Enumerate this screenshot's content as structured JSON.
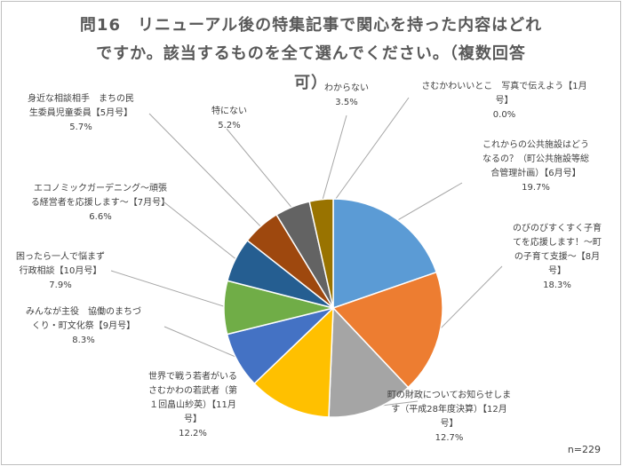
{
  "chart_data": {
    "type": "pie",
    "title_lines": [
      "問16　リニューアル後の特集記事で関心を持った内容はどれ",
      "ですか。該当するものを全て選んでください。（複数回答",
      "可）"
    ],
    "note": "n=229",
    "legend": "none",
    "slices": [
      {
        "label_lines": [
          "これからの公共施設はどう",
          "なるの？（町公共施設等総",
          "合管理計画）【6月号】"
        ],
        "value": 19.7,
        "value_text": "19.7%",
        "color": "#5b9bd5"
      },
      {
        "label_lines": [
          "のびのびすくすく子育",
          "てを応援します！～町",
          "の子育て支援～【8月",
          "号】"
        ],
        "value": 18.3,
        "value_text": "18.3%",
        "color": "#ed7d31"
      },
      {
        "label_lines": [
          "町の財政についてお知らせしま",
          "す（平成28年度決算）【12月",
          "号】"
        ],
        "value": 12.7,
        "value_text": "12.7%",
        "color": "#a5a5a5"
      },
      {
        "label_lines": [
          "世界で戦う若者がいる",
          "さむかわの若武者（第",
          "１回畠山紗英）【11月",
          "号】"
        ],
        "value": 12.2,
        "value_text": "12.2%",
        "color": "#ffc000"
      },
      {
        "label_lines": [
          "みんなが主役　協働のまちづ",
          "くり・町文化祭【9月号】"
        ],
        "value": 8.3,
        "value_text": "8.3%",
        "color": "#4472c4"
      },
      {
        "label_lines": [
          "困ったら一人で悩まず",
          "行政相談【10月号】"
        ],
        "value": 7.9,
        "value_text": "7.9%",
        "color": "#70ad47"
      },
      {
        "label_lines": [
          "エコノミックガーデニング～頑張",
          "る経営者を応援します～【7月号】"
        ],
        "value": 6.6,
        "value_text": "6.6%",
        "color": "#255e91"
      },
      {
        "label_lines": [
          "身近な相談相手　まちの民",
          "生委員児童委員【5月号】"
        ],
        "value": 5.7,
        "value_text": "5.7%",
        "color": "#9e480e"
      },
      {
        "label_lines": [
          "特にない"
        ],
        "value": 5.2,
        "value_text": "5.2%",
        "color": "#636363"
      },
      {
        "label_lines": [
          "わからない"
        ],
        "value": 3.5,
        "value_text": "3.5%",
        "color": "#997300"
      },
      {
        "label_lines": [
          "さむかわいいとこ　写真で伝えよう【1月",
          "号】"
        ],
        "value": 0.0,
        "value_text": "0.0%",
        "color": "#264478"
      }
    ]
  }
}
